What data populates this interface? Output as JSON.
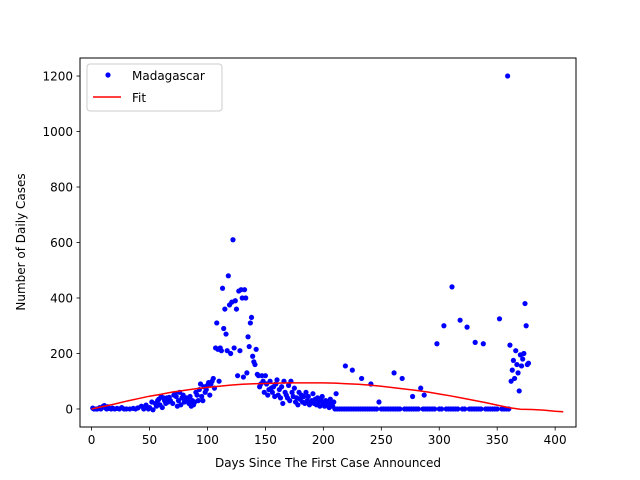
{
  "chart_data": {
    "type": "scatter",
    "xlabel": "Days Since The First Case Announced",
    "ylabel": "Number of Daily Cases",
    "xlim": [
      -10,
      418
    ],
    "ylim": [
      -65,
      1265
    ],
    "xticks": [
      0,
      50,
      100,
      150,
      200,
      250,
      300,
      350,
      400
    ],
    "yticks": [
      0,
      200,
      400,
      600,
      800,
      1000,
      1200
    ],
    "legend_position": "upper left",
    "grid": false,
    "series": [
      {
        "name": "Madagascar",
        "kind": "points",
        "color": "#0000ff",
        "points": [
          [
            1,
            3
          ],
          [
            2,
            0
          ],
          [
            4,
            0
          ],
          [
            5,
            0
          ],
          [
            7,
            5
          ],
          [
            8,
            0
          ],
          [
            10,
            10
          ],
          [
            11,
            12
          ],
          [
            12,
            4
          ],
          [
            13,
            0
          ],
          [
            14,
            8
          ],
          [
            15,
            2
          ],
          [
            17,
            0
          ],
          [
            18,
            3
          ],
          [
            20,
            0
          ],
          [
            22,
            2
          ],
          [
            24,
            0
          ],
          [
            26,
            5
          ],
          [
            28,
            0
          ],
          [
            30,
            0
          ],
          [
            33,
            0
          ],
          [
            36,
            2
          ],
          [
            38,
            0
          ],
          [
            40,
            4
          ],
          [
            43,
            10
          ],
          [
            45,
            0
          ],
          [
            47,
            14
          ],
          [
            49,
            0
          ],
          [
            50,
            5
          ],
          [
            52,
            25
          ],
          [
            53,
            -3
          ],
          [
            55,
            20
          ],
          [
            56,
            10
          ],
          [
            57,
            30
          ],
          [
            58,
            35
          ],
          [
            59,
            15
          ],
          [
            60,
            45
          ],
          [
            61,
            5
          ],
          [
            62,
            40
          ],
          [
            63,
            30
          ],
          [
            64,
            20
          ],
          [
            65,
            40
          ],
          [
            66,
            25
          ],
          [
            67,
            42
          ],
          [
            68,
            30
          ],
          [
            70,
            20
          ],
          [
            71,
            50
          ],
          [
            72,
            55
          ],
          [
            73,
            45
          ],
          [
            74,
            10
          ],
          [
            75,
            30
          ],
          [
            76,
            60
          ],
          [
            77,
            15
          ],
          [
            78,
            40
          ],
          [
            79,
            50
          ],
          [
            80,
            25
          ],
          [
            81,
            35
          ],
          [
            82,
            40
          ],
          [
            83,
            30
          ],
          [
            84,
            20
          ],
          [
            85,
            45
          ],
          [
            86,
            10
          ],
          [
            87,
            30
          ],
          [
            88,
            15
          ],
          [
            89,
            25
          ],
          [
            90,
            60
          ],
          [
            91,
            50
          ],
          [
            92,
            30
          ],
          [
            93,
            70
          ],
          [
            94,
            90
          ],
          [
            95,
            45
          ],
          [
            96,
            30
          ],
          [
            97,
            80
          ],
          [
            98,
            60
          ],
          [
            99,
            70
          ],
          [
            100,
            85
          ],
          [
            101,
            95
          ],
          [
            102,
            50
          ],
          [
            103,
            90
          ],
          [
            104,
            100
          ],
          [
            105,
            110
          ],
          [
            106,
            75
          ],
          [
            107,
            220
          ],
          [
            108,
            310
          ],
          [
            109,
            215
          ],
          [
            110,
            100
          ],
          [
            111,
            220
          ],
          [
            112,
            210
          ],
          [
            113,
            435
          ],
          [
            114,
            290
          ],
          [
            115,
            360
          ],
          [
            116,
            270
          ],
          [
            117,
            210
          ],
          [
            118,
            480
          ],
          [
            119,
            375
          ],
          [
            120,
            200
          ],
          [
            121,
            385
          ],
          [
            122,
            610
          ],
          [
            123,
            220
          ],
          [
            124,
            390
          ],
          [
            125,
            360
          ],
          [
            126,
            120
          ],
          [
            127,
            425
          ],
          [
            128,
            210
          ],
          [
            129,
            430
          ],
          [
            130,
            400
          ],
          [
            131,
            115
          ],
          [
            132,
            430
          ],
          [
            133,
            400
          ],
          [
            134,
            130
          ],
          [
            135,
            260
          ],
          [
            136,
            225
          ],
          [
            137,
            310
          ],
          [
            138,
            330
          ],
          [
            139,
            190
          ],
          [
            140,
            170
          ],
          [
            141,
            160
          ],
          [
            142,
            215
          ],
          [
            143,
            125
          ],
          [
            144,
            120
          ],
          [
            145,
            80
          ],
          [
            146,
            90
          ],
          [
            147,
            120
          ],
          [
            148,
            100
          ],
          [
            149,
            60
          ],
          [
            150,
            120
          ],
          [
            151,
            90
          ],
          [
            152,
            50
          ],
          [
            153,
            70
          ],
          [
            154,
            100
          ],
          [
            155,
            75
          ],
          [
            156,
            60
          ],
          [
            157,
            80
          ],
          [
            158,
            45
          ],
          [
            159,
            90
          ],
          [
            160,
            105
          ],
          [
            161,
            50
          ],
          [
            162,
            70
          ],
          [
            163,
            40
          ],
          [
            164,
            80
          ],
          [
            165,
            20
          ],
          [
            166,
            100
          ],
          [
            167,
            60
          ],
          [
            168,
            50
          ],
          [
            169,
            40
          ],
          [
            170,
            85
          ],
          [
            171,
            30
          ],
          [
            172,
            100
          ],
          [
            173,
            60
          ],
          [
            174,
            45
          ],
          [
            175,
            75
          ],
          [
            176,
            25
          ],
          [
            177,
            40
          ],
          [
            178,
            15
          ],
          [
            179,
            60
          ],
          [
            180,
            35
          ],
          [
            181,
            50
          ],
          [
            182,
            25
          ],
          [
            183,
            45
          ],
          [
            184,
            20
          ],
          [
            185,
            60
          ],
          [
            186,
            30
          ],
          [
            187,
            45
          ],
          [
            188,
            15
          ],
          [
            189,
            25
          ],
          [
            190,
            30
          ],
          [
            191,
            55
          ],
          [
            192,
            20
          ],
          [
            193,
            35
          ],
          [
            194,
            15
          ],
          [
            195,
            40
          ],
          [
            196,
            25
          ],
          [
            197,
            10
          ],
          [
            198,
            30
          ],
          [
            199,
            45
          ],
          [
            200,
            20
          ],
          [
            201,
            10
          ],
          [
            202,
            30
          ],
          [
            203,
            15
          ],
          [
            204,
            25
          ],
          [
            205,
            5
          ],
          [
            206,
            35
          ],
          [
            207,
            20
          ],
          [
            208,
            10
          ],
          [
            209,
            25
          ],
          [
            210,
            0
          ],
          [
            211,
            55
          ],
          [
            212,
            0
          ],
          [
            214,
            0
          ],
          [
            216,
            0
          ],
          [
            218,
            0
          ],
          [
            219,
            155
          ],
          [
            220,
            0
          ],
          [
            222,
            0
          ],
          [
            224,
            0
          ],
          [
            225,
            140
          ],
          [
            226,
            0
          ],
          [
            228,
            0
          ],
          [
            230,
            0
          ],
          [
            232,
            0
          ],
          [
            233,
            110
          ],
          [
            234,
            0
          ],
          [
            236,
            0
          ],
          [
            238,
            0
          ],
          [
            240,
            0
          ],
          [
            241,
            90
          ],
          [
            242,
            0
          ],
          [
            244,
            0
          ],
          [
            246,
            0
          ],
          [
            248,
            25
          ],
          [
            250,
            0
          ],
          [
            252,
            0
          ],
          [
            254,
            0
          ],
          [
            256,
            0
          ],
          [
            258,
            0
          ],
          [
            260,
            0
          ],
          [
            261,
            130
          ],
          [
            262,
            0
          ],
          [
            264,
            0
          ],
          [
            266,
            0
          ],
          [
            268,
            110
          ],
          [
            270,
            0
          ],
          [
            272,
            0
          ],
          [
            274,
            0
          ],
          [
            276,
            0
          ],
          [
            277,
            45
          ],
          [
            278,
            0
          ],
          [
            280,
            0
          ],
          [
            282,
            0
          ],
          [
            284,
            75
          ],
          [
            286,
            0
          ],
          [
            287,
            50
          ],
          [
            288,
            0
          ],
          [
            290,
            0
          ],
          [
            292,
            0
          ],
          [
            294,
            0
          ],
          [
            296,
            0
          ],
          [
            298,
            235
          ],
          [
            300,
            0
          ],
          [
            302,
            0
          ],
          [
            304,
            300
          ],
          [
            306,
            0
          ],
          [
            308,
            0
          ],
          [
            310,
            0
          ],
          [
            311,
            440
          ],
          [
            312,
            0
          ],
          [
            314,
            0
          ],
          [
            316,
            0
          ],
          [
            318,
            320
          ],
          [
            320,
            0
          ],
          [
            322,
            0
          ],
          [
            324,
            295
          ],
          [
            326,
            0
          ],
          [
            328,
            0
          ],
          [
            330,
            0
          ],
          [
            331,
            240
          ],
          [
            332,
            0
          ],
          [
            334,
            0
          ],
          [
            336,
            0
          ],
          [
            338,
            235
          ],
          [
            340,
            0
          ],
          [
            342,
            0
          ],
          [
            344,
            0
          ],
          [
            346,
            0
          ],
          [
            348,
            0
          ],
          [
            350,
            0
          ],
          [
            352,
            325
          ],
          [
            354,
            0
          ],
          [
            356,
            0
          ],
          [
            358,
            0
          ],
          [
            359,
            1200
          ],
          [
            360,
            0
          ],
          [
            361,
            230
          ],
          [
            362,
            100
          ],
          [
            363,
            140
          ],
          [
            364,
            175
          ],
          [
            365,
            110
          ],
          [
            366,
            210
          ],
          [
            367,
            160
          ],
          [
            368,
            130
          ],
          [
            369,
            65
          ],
          [
            370,
            195
          ],
          [
            371,
            155
          ],
          [
            372,
            180
          ],
          [
            373,
            200
          ],
          [
            374,
            380
          ],
          [
            375,
            300
          ],
          [
            376,
            160
          ],
          [
            377,
            165
          ]
        ]
      },
      {
        "name": "Fit",
        "kind": "line",
        "color": "#ff0000",
        "points": [
          [
            0,
            0
          ],
          [
            10,
            9
          ],
          [
            20,
            18
          ],
          [
            30,
            28
          ],
          [
            40,
            37
          ],
          [
            50,
            46
          ],
          [
            60,
            53
          ],
          [
            70,
            61
          ],
          [
            80,
            67
          ],
          [
            90,
            73
          ],
          [
            100,
            78
          ],
          [
            110,
            82
          ],
          [
            120,
            86
          ],
          [
            130,
            89
          ],
          [
            140,
            91
          ],
          [
            150,
            92
          ],
          [
            160,
            93
          ],
          [
            170,
            94
          ],
          [
            180,
            94
          ],
          [
            190,
            94
          ],
          [
            200,
            94
          ],
          [
            210,
            93
          ],
          [
            220,
            91
          ],
          [
            230,
            89
          ],
          [
            240,
            86
          ],
          [
            250,
            82
          ],
          [
            260,
            77
          ],
          [
            270,
            72
          ],
          [
            280,
            67
          ],
          [
            290,
            61
          ],
          [
            300,
            54
          ],
          [
            310,
            47
          ],
          [
            320,
            39
          ],
          [
            330,
            31
          ],
          [
            340,
            23
          ],
          [
            350,
            14
          ],
          [
            360,
            5
          ],
          [
            370,
            -1
          ],
          [
            380,
            -2
          ],
          [
            390,
            -4
          ],
          [
            400,
            -8
          ],
          [
            407,
            -10
          ]
        ]
      }
    ]
  }
}
